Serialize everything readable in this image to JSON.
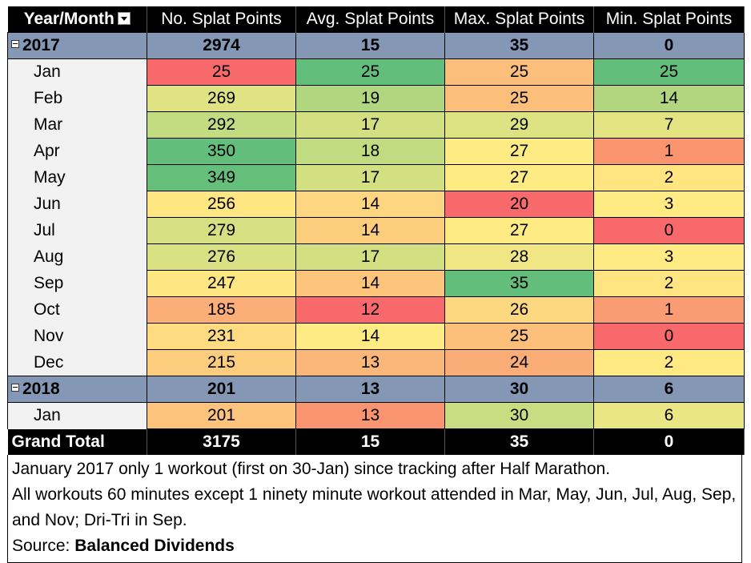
{
  "headers": [
    "Year/Month",
    "No. Splat Points",
    "Avg. Splat Points",
    "Max. Splat Points",
    "Min. Splat Points"
  ],
  "years": [
    {
      "label": "2017",
      "totals": [
        "2974",
        "15",
        "35",
        "0"
      ],
      "months": [
        {
          "label": "Jan",
          "values": [
            "25",
            "25",
            "25",
            "25"
          ],
          "colors": [
            "#f8696b",
            "#63be7b",
            "#fcbf7b",
            "#63be7b"
          ]
        },
        {
          "label": "Feb",
          "values": [
            "269",
            "19",
            "25",
            "14"
          ],
          "colors": [
            "#e0e383",
            "#b0d67f",
            "#fcbf7b",
            "#b2d680"
          ]
        },
        {
          "label": "Mar",
          "values": [
            "292",
            "17",
            "29",
            "7"
          ],
          "colors": [
            "#c3dc81",
            "#d3e082",
            "#dde283",
            "#e5e483"
          ]
        },
        {
          "label": "Apr",
          "values": [
            "350",
            "18",
            "27",
            "1"
          ],
          "colors": [
            "#63be7b",
            "#c1db81",
            "#ffeb84",
            "#f9946f"
          ]
        },
        {
          "label": "May",
          "values": [
            "349",
            "17",
            "27",
            "2"
          ],
          "colors": [
            "#65bf7b",
            "#d3e082",
            "#ffeb84",
            "#fee582"
          ]
        },
        {
          "label": "Jun",
          "values": [
            "256",
            "14",
            "20",
            "3"
          ],
          "colors": [
            "#fee683",
            "#fed580",
            "#f8696b",
            "#ffeb84"
          ]
        },
        {
          "label": "Jul",
          "values": [
            "279",
            "14",
            "27",
            "0"
          ],
          "colors": [
            "#d6e082",
            "#fdcd7e",
            "#ffeb84",
            "#f8696b"
          ]
        },
        {
          "label": "Aug",
          "values": [
            "276",
            "17",
            "28",
            "3"
          ],
          "colors": [
            "#d9e182",
            "#d3e082",
            "#f0e784",
            "#ffeb84"
          ]
        },
        {
          "label": "Sep",
          "values": [
            "247",
            "14",
            "35",
            "2"
          ],
          "colors": [
            "#fee683",
            "#fdc47c",
            "#63be7b",
            "#fee582"
          ]
        },
        {
          "label": "Oct",
          "values": [
            "185",
            "12",
            "26",
            "1"
          ],
          "colors": [
            "#fbae78",
            "#f8696b",
            "#fed781",
            "#fa9c73"
          ]
        },
        {
          "label": "Nov",
          "values": [
            "231",
            "14",
            "25",
            "0"
          ],
          "colors": [
            "#fedb81",
            "#ffeb84",
            "#fcc07b",
            "#f8696b"
          ]
        },
        {
          "label": "Dec",
          "values": [
            "215",
            "13",
            "24",
            "2"
          ],
          "colors": [
            "#fdcd7e",
            "#fbb77a",
            "#fbad78",
            "#fee983"
          ]
        }
      ]
    },
    {
      "label": "2018",
      "totals": [
        "201",
        "13",
        "30",
        "6"
      ],
      "months": [
        {
          "label": "Jan",
          "values": [
            "201",
            "13",
            "30",
            "6"
          ],
          "colors": [
            "#fcc37c",
            "#f99470",
            "#c8dc81",
            "#eae684"
          ]
        }
      ]
    }
  ],
  "grand_total": {
    "label": "Grand Total",
    "values": [
      "3175",
      "15",
      "35",
      "0"
    ]
  },
  "notes": [
    "January 2017 only 1 workout (first on 30-Jan) since tracking after Half Marathon.",
    "All workouts 60 minutes except 1 ninety minute workout attended in Mar, May, Jun, Jul, Aug, Sep, and Nov; Dri-Tri in Sep."
  ],
  "source": {
    "prefix": "Source: ",
    "name": "Balanced Dividends"
  },
  "icons": {
    "header_filter": "dropdown-filter-icon",
    "year_toggle": "collapse-toggle-icon"
  }
}
